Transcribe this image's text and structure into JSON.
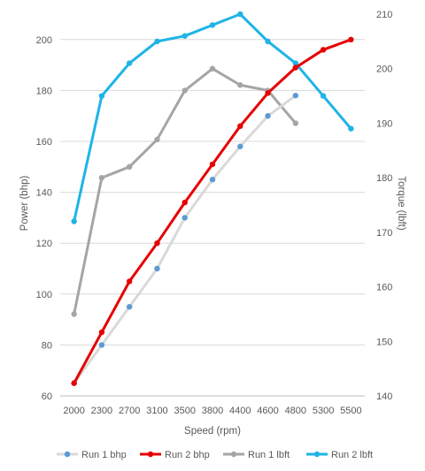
{
  "chart_data": {
    "type": "line",
    "categories": [
      "2000",
      "2300",
      "2700",
      "3100",
      "3500",
      "3800",
      "4400",
      "4600",
      "4800",
      "5300",
      "5500"
    ],
    "xlabel": "Speed (rpm)",
    "ylabel_left": "Power (bhp)",
    "ylabel_right": "Torque (lbft)",
    "ylim_left": [
      60,
      210
    ],
    "yticks_left": [
      60,
      80,
      100,
      120,
      140,
      160,
      180,
      200
    ],
    "ylim_right": [
      140,
      210
    ],
    "yticks_right": [
      140,
      150,
      160,
      170,
      180,
      190,
      200,
      210
    ],
    "grid": "horizontal",
    "legend_position": "bottom",
    "series": [
      {
        "name": "Run 1 bhp",
        "axis": "left",
        "color": "#d9d9d9",
        "marker_color": "#5b9bd5",
        "line_width": 3,
        "values": [
          65,
          80,
          95,
          110,
          130,
          145,
          158,
          170,
          178,
          null,
          null
        ]
      },
      {
        "name": "Run 2 bhp",
        "axis": "left",
        "color": "#e60000",
        "marker_color": "#e60000",
        "line_width": 3,
        "values": [
          65,
          85,
          105,
          120,
          136,
          151,
          166,
          179,
          189,
          196,
          200
        ]
      },
      {
        "name": "Run 1 lbft",
        "axis": "right",
        "color": "#a5a5a5",
        "marker_color": "#a5a5a5",
        "line_width": 3,
        "values": [
          155,
          180,
          182,
          187,
          196,
          200,
          197,
          196,
          190,
          null,
          null
        ]
      },
      {
        "name": "Run 2 lbft",
        "axis": "right",
        "color": "#1eb4e6",
        "marker_color": "#1eb4e6",
        "line_width": 3,
        "values": [
          172,
          195,
          201,
          205,
          206,
          208,
          210,
          205,
          201,
          195,
          189
        ]
      }
    ]
  }
}
